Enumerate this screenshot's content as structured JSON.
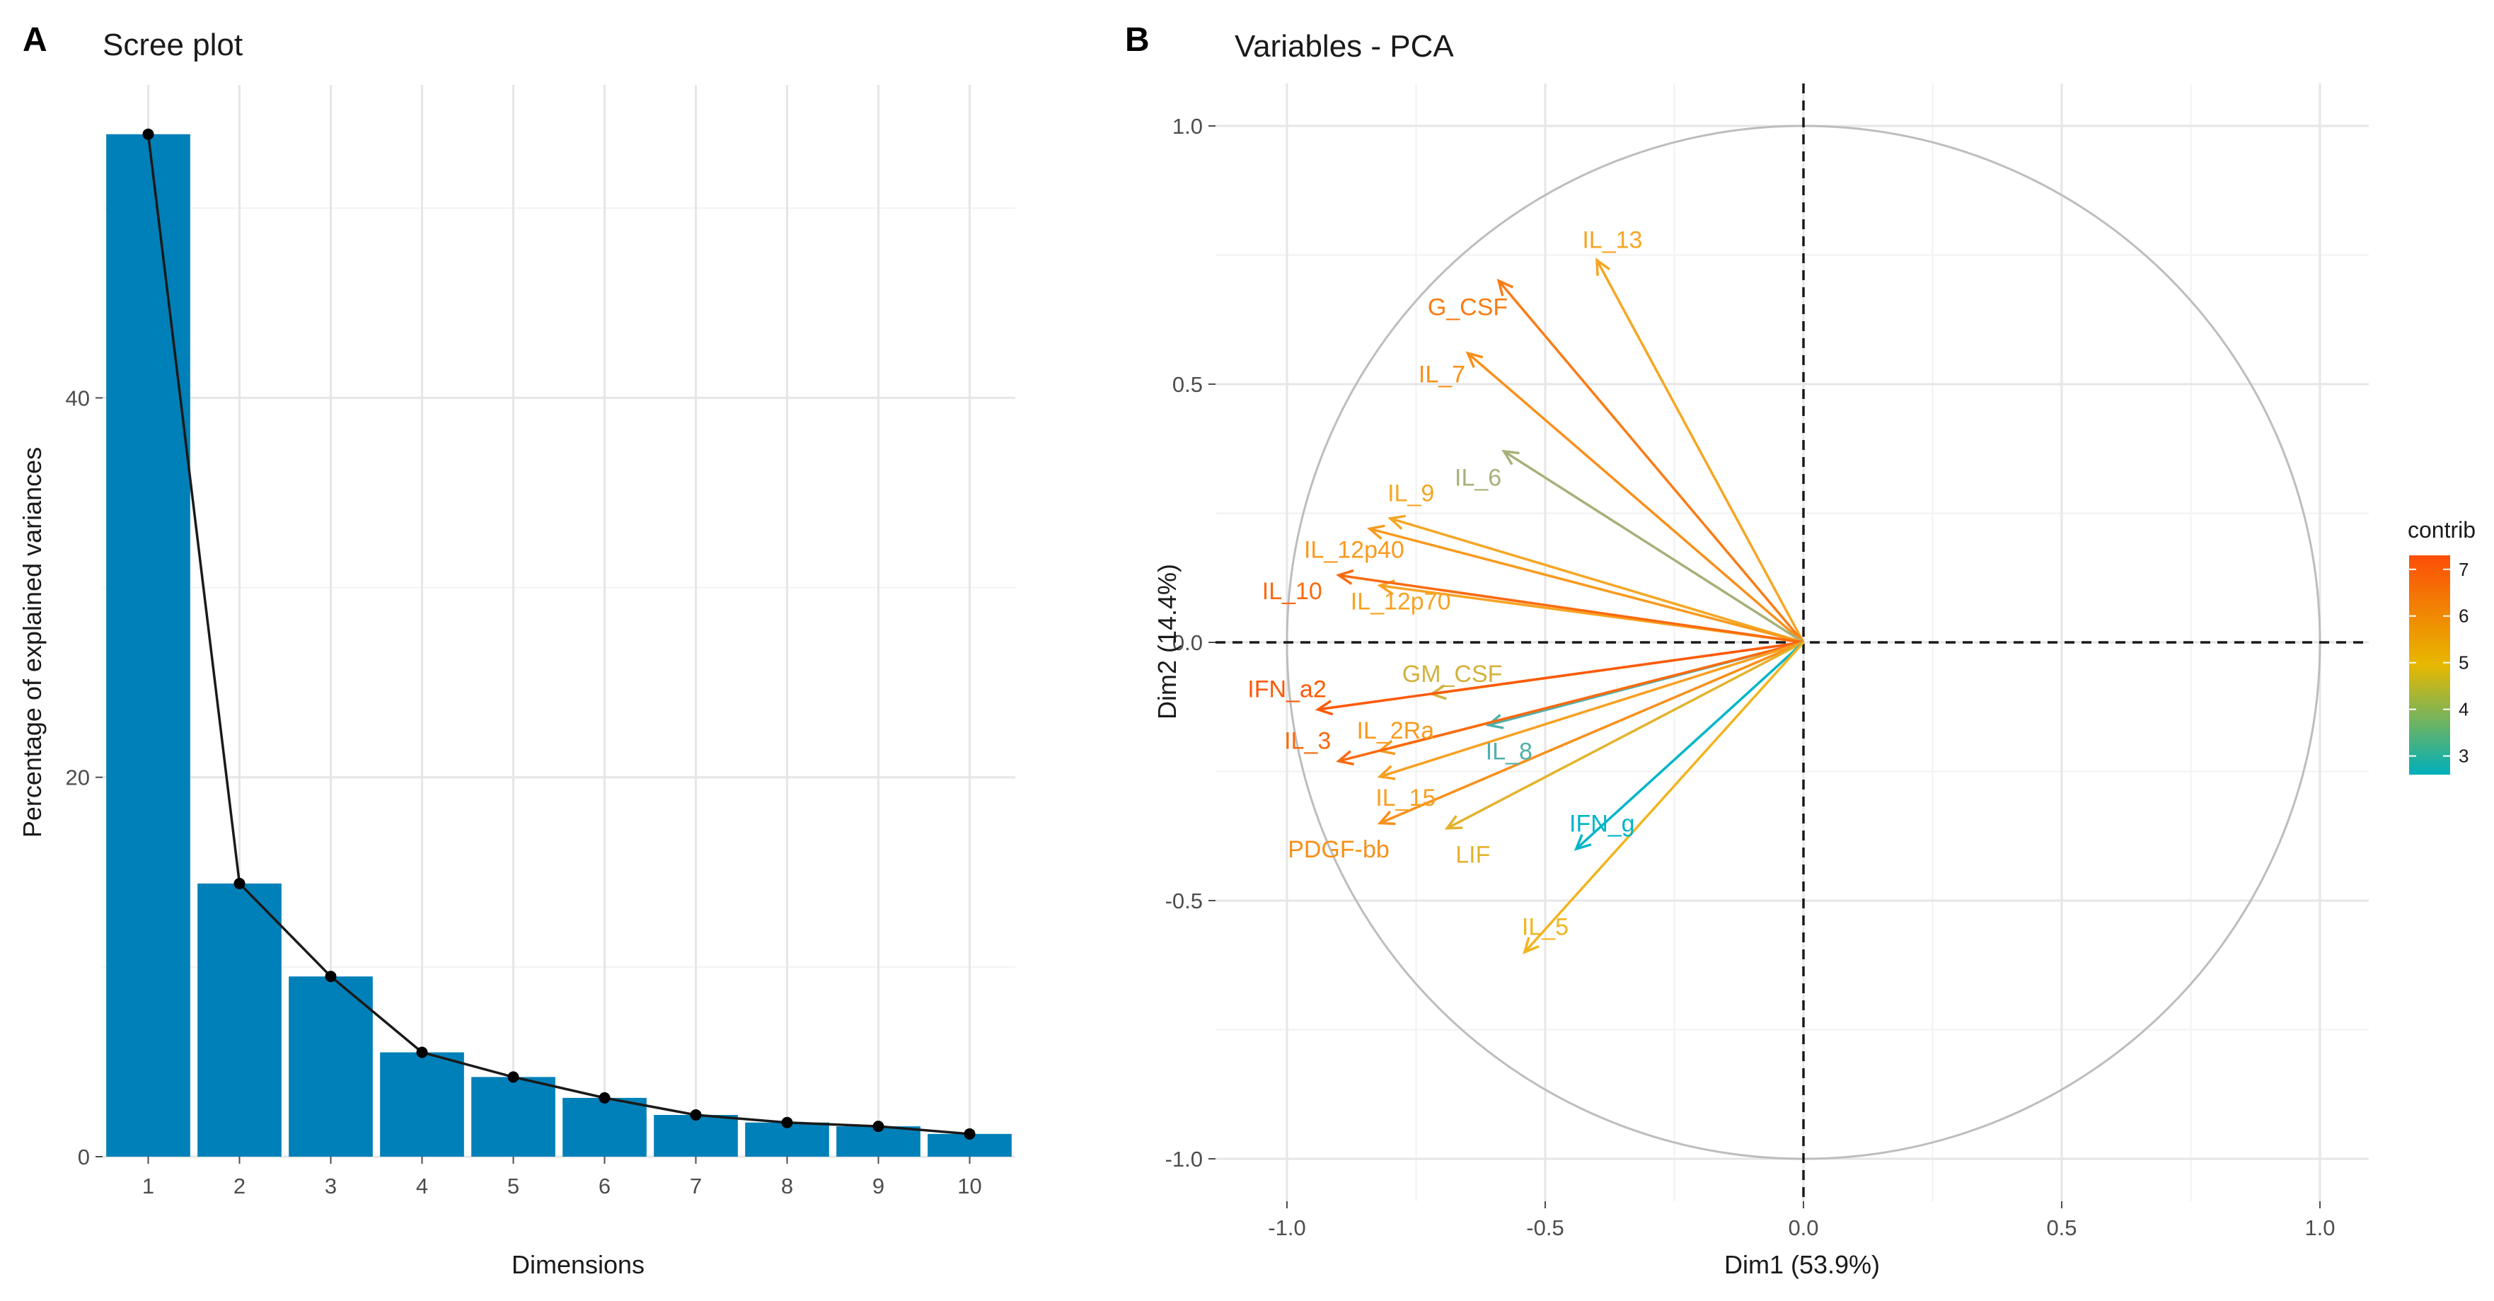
{
  "panels": {
    "a_letter": "A",
    "b_letter": "B"
  },
  "chart_data": [
    {
      "type": "bar",
      "title": "Scree plot",
      "xlabel": "Dimensions",
      "ylabel": "Percentage of explained variances",
      "categories": [
        "1",
        "2",
        "3",
        "4",
        "5",
        "6",
        "7",
        "8",
        "9",
        "10"
      ],
      "values": [
        53.9,
        14.4,
        9.5,
        5.5,
        4.2,
        3.1,
        2.2,
        1.8,
        1.6,
        1.2
      ],
      "line_overlay": true,
      "ylim": [
        0,
        56.5
      ],
      "yticks": [
        0,
        20,
        40
      ],
      "bar_color": "#0080b8",
      "grid": true
    },
    {
      "type": "scatter",
      "subtype": "pca-variable-correlation-circle",
      "title": "Variables - PCA",
      "xlabel": "Dim1 (53.9%)",
      "ylabel": "Dim2 (14.4%)",
      "xlim": [
        -1.06,
        1.06
      ],
      "ylim": [
        -1.06,
        1.06
      ],
      "xticks": [
        -1.0,
        -0.5,
        0.0,
        0.5,
        1.0
      ],
      "yticks": [
        -1.0,
        -0.5,
        0.0,
        0.5,
        1.0
      ],
      "xtick_labels": [
        "-1.0",
        "-0.5",
        "0.0",
        "0.5",
        "1.0"
      ],
      "ytick_labels": [
        "-1.0",
        "-0.5",
        "0.0",
        "0.5",
        "1.0"
      ],
      "legend": {
        "title": "contrib",
        "position": "right",
        "min": 2.6,
        "max": 7.3,
        "ticks": [
          3,
          4,
          5,
          6,
          7
        ],
        "colors": [
          "#00afbb",
          "#e7b800",
          "#fc4e07"
        ]
      },
      "variables": [
        {
          "name": "IL_13",
          "x": -0.4,
          "y": 0.74,
          "contrib": 5.4,
          "color": "#f6a623",
          "label_x": -0.37,
          "label_y": 0.78
        },
        {
          "name": "G_CSF",
          "x": -0.59,
          "y": 0.7,
          "contrib": 6.6,
          "color": "#f97c16",
          "label_x": -0.65,
          "label_y": 0.65
        },
        {
          "name": "IL_7",
          "x": -0.65,
          "y": 0.56,
          "contrib": 6.2,
          "color": "#f8901a",
          "label_x": -0.7,
          "label_y": 0.52
        },
        {
          "name": "IL_6",
          "x": -0.58,
          "y": 0.37,
          "contrib": 4.2,
          "color": "#a8b07a",
          "label_x": -0.63,
          "label_y": 0.32
        },
        {
          "name": "IL_9",
          "x": -0.8,
          "y": 0.24,
          "contrib": 5.6,
          "color": "#f4a725",
          "label_x": -0.76,
          "label_y": 0.29
        },
        {
          "name": "IL_12p40",
          "x": -0.84,
          "y": 0.22,
          "contrib": 6.0,
          "color": "#f89a1e",
          "label_x": -0.87,
          "label_y": 0.18
        },
        {
          "name": "IL_12p70",
          "x": -0.82,
          "y": 0.11,
          "contrib": 5.8,
          "color": "#f6a323",
          "label_x": -0.78,
          "label_y": 0.08
        },
        {
          "name": "IL_10",
          "x": -0.9,
          "y": 0.13,
          "contrib": 6.8,
          "color": "#fb6a0f",
          "label_x": -0.99,
          "label_y": 0.1
        },
        {
          "name": "GM_CSF",
          "x": -0.72,
          "y": -0.1,
          "contrib": 4.9,
          "color": "#d4b13c",
          "label_x": -0.68,
          "label_y": -0.06
        },
        {
          "name": "IFN_a2",
          "x": -0.94,
          "y": -0.13,
          "contrib": 7.1,
          "color": "#fc5a09",
          "label_x": -1.0,
          "label_y": -0.09
        },
        {
          "name": "IL_2Ra",
          "x": -0.82,
          "y": -0.21,
          "contrib": 5.9,
          "color": "#f89b1f",
          "label_x": -0.79,
          "label_y": -0.17
        },
        {
          "name": "IL_8",
          "x": -0.61,
          "y": -0.16,
          "contrib": 3.4,
          "color": "#4fb0ad",
          "label_x": -0.57,
          "label_y": -0.21
        },
        {
          "name": "IL_3",
          "x": -0.9,
          "y": -0.23,
          "contrib": 6.8,
          "color": "#fb6a0f",
          "label_x": -0.96,
          "label_y": -0.19
        },
        {
          "name": "IL_15",
          "x": -0.82,
          "y": -0.26,
          "contrib": 5.8,
          "color": "#f7a022",
          "label_x": -0.77,
          "label_y": -0.3
        },
        {
          "name": "PDGF-bb",
          "x": -0.82,
          "y": -0.35,
          "contrib": 6.2,
          "color": "#f8901a",
          "label_x": -0.9,
          "label_y": -0.4
        },
        {
          "name": "LIF",
          "x": -0.69,
          "y": -0.36,
          "contrib": 5.2,
          "color": "#e3b32c",
          "label_x": -0.64,
          "label_y": -0.41
        },
        {
          "name": "IFN_g",
          "x": -0.44,
          "y": -0.4,
          "contrib": 2.8,
          "color": "#00b5c8",
          "label_x": -0.39,
          "label_y": -0.35
        },
        {
          "name": "IL_5",
          "x": -0.54,
          "y": -0.6,
          "contrib": 5.1,
          "color": "#f1b51f",
          "label_x": -0.5,
          "label_y": -0.55
        }
      ]
    }
  ]
}
